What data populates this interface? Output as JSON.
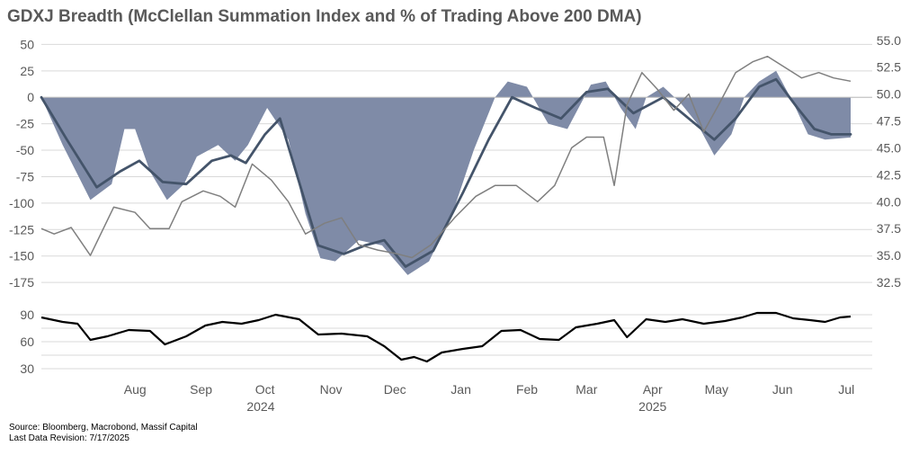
{
  "title": "GDXJ Breadth (McClellan Summation Index and % of Trading Above 200 DMA)",
  "source": "Source: Bloomberg, Macrobond, Massif Capital",
  "revision": "Last Data Revision: 7/17/2025",
  "colors": {
    "area": "#7f8ba7",
    "smooth": "#44546a",
    "pct_line": "#7f7f7f",
    "lower_line": "#000000",
    "grid": "#d9d9d9"
  },
  "chart_data": [
    {
      "type": "line",
      "panel": "upper",
      "left_axis": {
        "ticks": [
          50,
          25,
          0,
          -25,
          -50,
          -75,
          -100,
          -125,
          -150,
          -175
        ],
        "ylim": [
          -180,
          58
        ]
      },
      "right_axis": {
        "ticks": [
          "55.0",
          "52.5",
          "50.0",
          "47.5",
          "45.0",
          "42.5",
          "40.0",
          "37.5",
          "35.0",
          "32.5"
        ],
        "ylim": [
          32.0,
          55.4
        ]
      },
      "x_range": [
        "2024-07-02",
        "2025-07-17"
      ],
      "series": [
        {
          "kind": "area",
          "axis": "left",
          "points": [
            [
              "2024-07-02",
              0
            ],
            [
              "2024-07-12",
              -45
            ],
            [
              "2024-07-25",
              -97
            ],
            [
              "2024-08-04",
              -82
            ],
            [
              "2024-08-10",
              -30
            ],
            [
              "2024-08-15",
              -30
            ],
            [
              "2024-08-22",
              -70
            ],
            [
              "2024-08-30",
              -97
            ],
            [
              "2024-09-07",
              -82
            ],
            [
              "2024-09-13",
              -56
            ],
            [
              "2024-09-23",
              -45
            ],
            [
              "2024-10-01",
              -60
            ],
            [
              "2024-10-07",
              -45
            ],
            [
              "2024-10-16",
              -10
            ],
            [
              "2024-10-26",
              -40
            ],
            [
              "2024-11-03",
              -110
            ],
            [
              "2024-11-10",
              -152
            ],
            [
              "2024-11-17",
              -155
            ],
            [
              "2024-11-28",
              -135
            ],
            [
              "2024-12-09",
              -140
            ],
            [
              "2024-12-21",
              -168
            ],
            [
              "2024-12-31",
              -155
            ],
            [
              "2025-01-11",
              -110
            ],
            [
              "2025-01-21",
              -50
            ],
            [
              "2025-01-31",
              0
            ],
            [
              "2025-02-06",
              15
            ],
            [
              "2025-02-15",
              10
            ],
            [
              "2025-02-25",
              -25
            ],
            [
              "2025-03-06",
              -30
            ],
            [
              "2025-03-17",
              12
            ],
            [
              "2025-03-24",
              15
            ],
            [
              "2025-03-31",
              -10
            ],
            [
              "2025-04-07",
              -30
            ],
            [
              "2025-04-12",
              0
            ],
            [
              "2025-04-20",
              10
            ],
            [
              "2025-04-28",
              -5
            ],
            [
              "2025-05-06",
              -25
            ],
            [
              "2025-05-14",
              -55
            ],
            [
              "2025-05-22",
              -35
            ],
            [
              "2025-05-28",
              0
            ],
            [
              "2025-06-04",
              15
            ],
            [
              "2025-06-12",
              25
            ],
            [
              "2025-06-20",
              -5
            ],
            [
              "2025-06-27",
              -35
            ],
            [
              "2025-07-05",
              -40
            ],
            [
              "2025-07-17",
              -38
            ]
          ]
        },
        {
          "kind": "line",
          "axis": "left",
          "points": [
            [
              "2024-07-02",
              0
            ],
            [
              "2024-07-14",
              -40
            ],
            [
              "2024-07-28",
              -85
            ],
            [
              "2024-08-08",
              -70
            ],
            [
              "2024-08-17",
              -60
            ],
            [
              "2024-08-28",
              -80
            ],
            [
              "2024-09-08",
              -82
            ],
            [
              "2024-09-20",
              -60
            ],
            [
              "2024-09-29",
              -55
            ],
            [
              "2024-10-06",
              -62
            ],
            [
              "2024-10-15",
              -35
            ],
            [
              "2024-10-22",
              -20
            ],
            [
              "2024-10-31",
              -80
            ],
            [
              "2024-11-09",
              -140
            ],
            [
              "2024-11-21",
              -148
            ],
            [
              "2024-12-01",
              -140
            ],
            [
              "2024-12-10",
              -135
            ],
            [
              "2024-12-20",
              -160
            ],
            [
              "2025-01-02",
              -145
            ],
            [
              "2025-01-16",
              -90
            ],
            [
              "2025-01-28",
              -40
            ],
            [
              "2025-02-08",
              0
            ],
            [
              "2025-02-19",
              -10
            ],
            [
              "2025-03-03",
              -20
            ],
            [
              "2025-03-15",
              5
            ],
            [
              "2025-03-25",
              8
            ],
            [
              "2025-04-06",
              -15
            ],
            [
              "2025-04-20",
              0
            ],
            [
              "2025-05-02",
              -20
            ],
            [
              "2025-05-14",
              -40
            ],
            [
              "2025-05-24",
              -20
            ],
            [
              "2025-06-04",
              10
            ],
            [
              "2025-06-12",
              17
            ],
            [
              "2025-06-22",
              -10
            ],
            [
              "2025-06-30",
              -30
            ],
            [
              "2025-07-08",
              -35
            ],
            [
              "2025-07-17",
              -35
            ]
          ]
        },
        {
          "kind": "line",
          "axis": "right",
          "points": [
            [
              "2024-07-02",
              37.5
            ],
            [
              "2024-07-08",
              37.0
            ],
            [
              "2024-07-16",
              37.6
            ],
            [
              "2024-07-25",
              35.0
            ],
            [
              "2024-08-05",
              39.5
            ],
            [
              "2024-08-15",
              39.0
            ],
            [
              "2024-08-22",
              37.5
            ],
            [
              "2024-08-31",
              37.5
            ],
            [
              "2024-09-06",
              40.0
            ],
            [
              "2024-09-16",
              41.0
            ],
            [
              "2024-09-24",
              40.5
            ],
            [
              "2024-10-01",
              39.5
            ],
            [
              "2024-10-09",
              43.5
            ],
            [
              "2024-10-18",
              42.0
            ],
            [
              "2024-10-26",
              40.0
            ],
            [
              "2024-11-03",
              37.0
            ],
            [
              "2024-11-12",
              38.0
            ],
            [
              "2024-11-20",
              38.5
            ],
            [
              "2024-11-28",
              36.0
            ],
            [
              "2024-12-07",
              35.5
            ],
            [
              "2024-12-15",
              35.2
            ],
            [
              "2024-12-23",
              34.8
            ],
            [
              "2025-01-01",
              36.0
            ],
            [
              "2025-01-12",
              38.5
            ],
            [
              "2025-01-22",
              40.5
            ],
            [
              "2025-01-31",
              41.5
            ],
            [
              "2025-02-10",
              41.5
            ],
            [
              "2025-02-20",
              40.0
            ],
            [
              "2025-02-28",
              41.5
            ],
            [
              "2025-03-08",
              45.0
            ],
            [
              "2025-03-15",
              46.0
            ],
            [
              "2025-03-23",
              46.0
            ],
            [
              "2025-03-28",
              41.5
            ],
            [
              "2025-04-03",
              49.0
            ],
            [
              "2025-04-10",
              52.0
            ],
            [
              "2025-04-17",
              50.5
            ],
            [
              "2025-04-25",
              48.5
            ],
            [
              "2025-05-02",
              50.0
            ],
            [
              "2025-05-09",
              46.5
            ],
            [
              "2025-05-16",
              49.0
            ],
            [
              "2025-05-24",
              52.0
            ],
            [
              "2025-06-01",
              53.0
            ],
            [
              "2025-06-08",
              53.5
            ],
            [
              "2025-06-16",
              52.5
            ],
            [
              "2025-06-24",
              51.5
            ],
            [
              "2025-07-02",
              52.0
            ],
            [
              "2025-07-09",
              51.5
            ],
            [
              "2025-07-17",
              51.2
            ]
          ]
        }
      ]
    },
    {
      "type": "line",
      "panel": "lower",
      "y_axis": {
        "ticks": [
          90,
          60,
          30
        ],
        "ylim": [
          20,
          100
        ]
      },
      "x_range": [
        "2024-07-02",
        "2025-07-17"
      ],
      "series": [
        {
          "kind": "line",
          "points": [
            [
              "2024-07-02",
              87
            ],
            [
              "2024-07-12",
              82
            ],
            [
              "2024-07-19",
              80
            ],
            [
              "2024-07-25",
              62
            ],
            [
              "2024-08-02",
              66
            ],
            [
              "2024-08-12",
              73
            ],
            [
              "2024-08-22",
              72
            ],
            [
              "2024-08-29",
              57
            ],
            [
              "2024-09-08",
              66
            ],
            [
              "2024-09-17",
              78
            ],
            [
              "2024-09-25",
              82
            ],
            [
              "2024-10-04",
              80
            ],
            [
              "2024-10-12",
              84
            ],
            [
              "2024-10-20",
              90
            ],
            [
              "2024-10-31",
              85
            ],
            [
              "2024-11-09",
              68
            ],
            [
              "2024-11-20",
              69
            ],
            [
              "2024-12-02",
              66
            ],
            [
              "2024-12-10",
              55
            ],
            [
              "2024-12-18",
              40
            ],
            [
              "2024-12-24",
              43
            ],
            [
              "2024-12-30",
              38
            ],
            [
              "2025-01-06",
              48
            ],
            [
              "2025-01-16",
              52
            ],
            [
              "2025-01-25",
              55
            ],
            [
              "2025-02-03",
              72
            ],
            [
              "2025-02-12",
              73
            ],
            [
              "2025-02-21",
              63
            ],
            [
              "2025-03-02",
              62
            ],
            [
              "2025-03-10",
              76
            ],
            [
              "2025-03-20",
              80
            ],
            [
              "2025-03-28",
              84
            ],
            [
              "2025-04-03",
              65
            ],
            [
              "2025-04-12",
              85
            ],
            [
              "2025-04-21",
              82
            ],
            [
              "2025-04-29",
              85
            ],
            [
              "2025-05-09",
              80
            ],
            [
              "2025-05-19",
              83
            ],
            [
              "2025-05-27",
              87
            ],
            [
              "2025-06-03",
              92
            ],
            [
              "2025-06-12",
              92
            ],
            [
              "2025-06-20",
              86
            ],
            [
              "2025-06-28",
              84
            ],
            [
              "2025-07-05",
              82
            ],
            [
              "2025-07-12",
              87
            ],
            [
              "2025-07-17",
              88
            ]
          ]
        }
      ]
    }
  ],
  "x_axis": {
    "months": [
      {
        "label": "Aug",
        "date": "2024-08-15"
      },
      {
        "label": "Sep",
        "date": "2024-09-15"
      },
      {
        "label": "Oct",
        "date": "2024-10-15"
      },
      {
        "label": "Nov",
        "date": "2024-11-15"
      },
      {
        "label": "Dec",
        "date": "2024-12-15"
      },
      {
        "label": "Jan",
        "date": "2025-01-15"
      },
      {
        "label": "Feb",
        "date": "2025-02-15"
      },
      {
        "label": "Mar",
        "date": "2025-03-15"
      },
      {
        "label": "Apr",
        "date": "2025-04-15"
      },
      {
        "label": "May",
        "date": "2025-05-15"
      },
      {
        "label": "Jun",
        "date": "2025-06-15"
      },
      {
        "label": "Jul",
        "date": "2025-07-15"
      }
    ],
    "years": [
      {
        "label": "2024",
        "date": "2024-10-13"
      },
      {
        "label": "2025",
        "date": "2025-04-15"
      }
    ]
  }
}
